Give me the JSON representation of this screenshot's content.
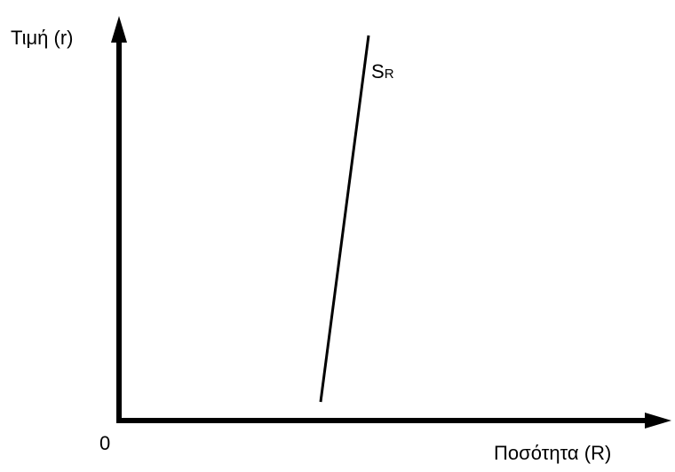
{
  "axes": {
    "y_label": "Τιμή (r)",
    "x_label": "Ποσότητα (R)",
    "origin": "0"
  },
  "curve": {
    "label": "S",
    "subscript": "R"
  }
}
